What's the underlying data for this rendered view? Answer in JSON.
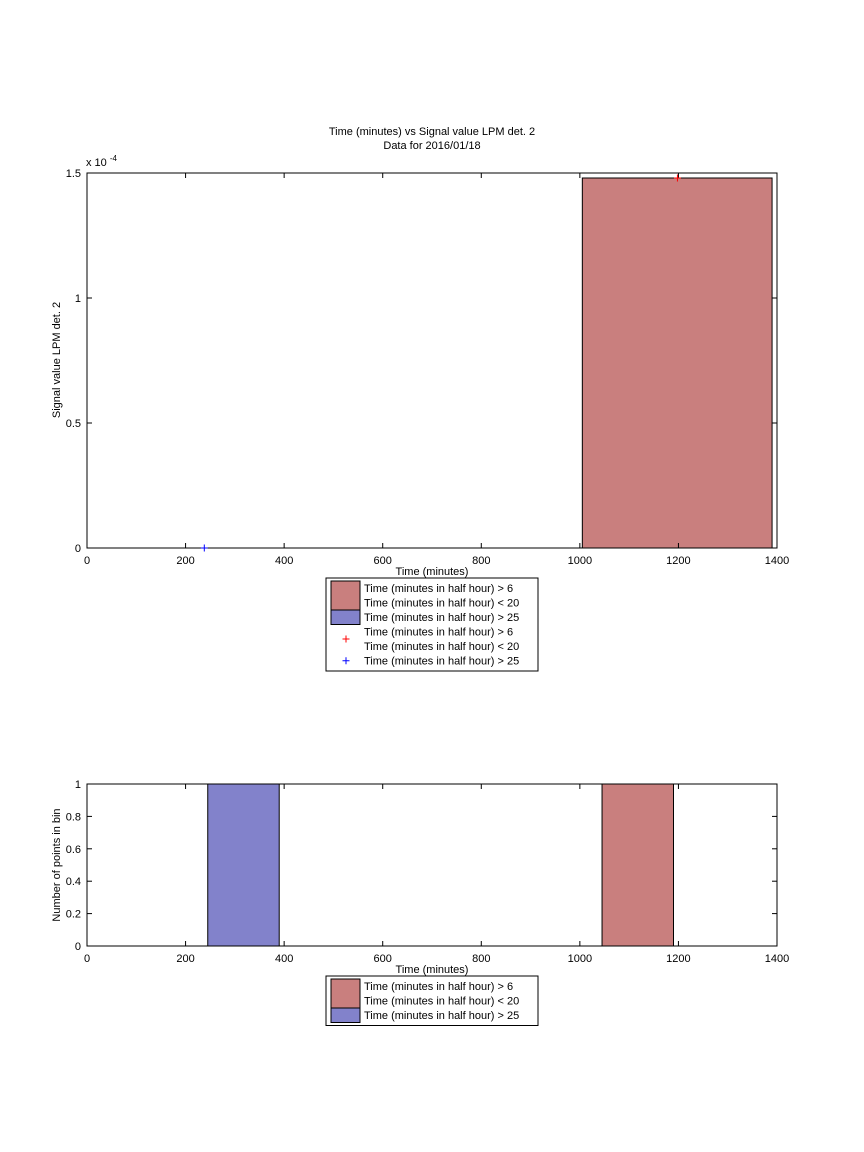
{
  "chart_data": [
    {
      "type": "bar",
      "title": "Time (minutes) vs Signal value LPM det. 2",
      "subtitle": "Data for 2016/01/18",
      "xlabel": "Time (minutes)",
      "ylabel": "Signal value LPM det. 2",
      "y_exponent_label": "x 10",
      "y_exponent_power": "-4",
      "xlim": [
        0,
        1400
      ],
      "ylim": [
        0,
        0.00015
      ],
      "xticks": [
        "0",
        "200",
        "400",
        "600",
        "800",
        "1000",
        "1200",
        "1400"
      ],
      "yticks": [
        "0",
        "0.5",
        "1",
        "1.5"
      ],
      "grid": false,
      "legend_position": "below",
      "bars": [
        {
          "series": "red",
          "x_start": 1005,
          "x_end": 1390,
          "value": 0.000148
        }
      ],
      "points": [
        {
          "series": "red",
          "x": 1198,
          "y": 0.000148
        },
        {
          "series": "blue",
          "x": 238,
          "y": 0
        }
      ],
      "legend": [
        {
          "kind": "patch",
          "color": "#c97f7e",
          "lines": [
            "Time (minutes in half hour) > 6",
            "Time (minutes in half hour) < 20"
          ]
        },
        {
          "kind": "patch",
          "color": "#8282cb",
          "lines": [
            "Time (minutes in half hour) > 25"
          ]
        },
        {
          "kind": "marker",
          "color": "#ff0000",
          "lines": [
            "Time (minutes in half hour) > 6",
            "Time (minutes in half hour) < 20"
          ]
        },
        {
          "kind": "marker",
          "color": "#0000ff",
          "lines": [
            "Time (minutes in half hour) > 25"
          ]
        }
      ]
    },
    {
      "type": "bar",
      "title": "",
      "xlabel": "Time (minutes)",
      "ylabel": "Number of points in bin",
      "xlim": [
        0,
        1400
      ],
      "ylim": [
        0,
        1
      ],
      "xticks": [
        "0",
        "200",
        "400",
        "600",
        "800",
        "1000",
        "1200",
        "1400"
      ],
      "yticks": [
        "0",
        "0.2",
        "0.4",
        "0.6",
        "0.8",
        "1"
      ],
      "grid": false,
      "legend_position": "below",
      "bars": [
        {
          "series": "blue",
          "x_start": 245,
          "x_end": 390,
          "value": 1
        },
        {
          "series": "red",
          "x_start": 1045,
          "x_end": 1190,
          "value": 1
        }
      ],
      "legend": [
        {
          "kind": "patch",
          "color": "#c97f7e",
          "lines": [
            "Time (minutes in half hour) > 6",
            "Time (minutes in half hour) < 20"
          ]
        },
        {
          "kind": "patch",
          "color": "#8282cb",
          "lines": [
            "Time (minutes in half hour) > 25"
          ]
        }
      ]
    }
  ],
  "colors": {
    "red_bar": "#c97f7e",
    "blue_bar": "#8282cb",
    "red_marker": "#ff0000",
    "blue_marker": "#0000ff"
  }
}
